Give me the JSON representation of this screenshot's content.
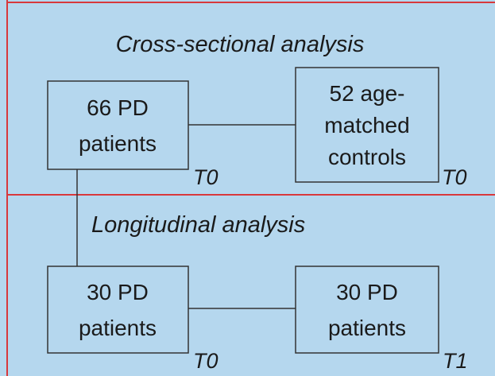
{
  "sections": [
    {
      "title": "Cross-sectional analysis"
    },
    {
      "title": "Longitudinal analysis"
    }
  ],
  "nodes": [
    {
      "lines": [
        "66 PD",
        "patients"
      ],
      "time": "T0"
    },
    {
      "lines": [
        "52 age-",
        "matched",
        "controls"
      ],
      "time": "T0"
    },
    {
      "lines": [
        "30 PD",
        "patients"
      ],
      "time": "T0"
    },
    {
      "lines": [
        "30 PD",
        "patients"
      ],
      "time": "T1"
    }
  ]
}
